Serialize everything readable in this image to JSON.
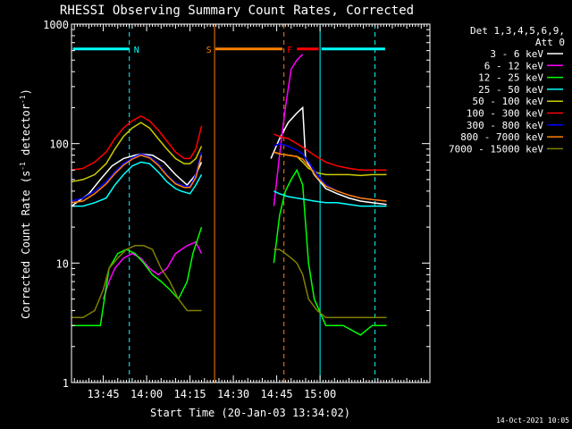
{
  "chart_data": {
    "type": "line",
    "title": "RHESSI Observing Summary Count Rates, Corrected",
    "xlabel": "Start Time (20-Jan-03 13:34:02)",
    "ylabel_main": "Corrected Count Rate (s",
    "ylabel_sup1": "-1",
    "ylabel_mid": " detector",
    "ylabel_sup2": "-1",
    "ylabel_end": ")",
    "yscale": "log",
    "ylim": [
      1,
      1000
    ],
    "xlim_min": [
      0,
      124
    ],
    "x_ticks": [
      {
        "v": 11,
        "label": "13:45"
      },
      {
        "v": 26,
        "label": "14:00"
      },
      {
        "v": 41,
        "label": "14:15"
      },
      {
        "v": 56,
        "label": "14:30"
      },
      {
        "v": 71,
        "label": "14:45"
      },
      {
        "v": 86,
        "label": "15:00"
      }
    ],
    "y_ticks": [
      {
        "v": 1,
        "label": "1"
      },
      {
        "v": 10,
        "label": "10"
      },
      {
        "v": 100,
        "label": "100"
      },
      {
        "v": 1000,
        "label": "1000"
      }
    ],
    "legend_header1": "Det 1,3,4,5,6,9,",
    "legend_header2": "Att 0",
    "legend_position": "top-right, outside plot",
    "timestamp": "14-Oct-2021 10:05",
    "series": [
      {
        "name": "3 - 6 keV",
        "color": "#ffffff",
        "points": [
          [
            0,
            30
          ],
          [
            6,
            38
          ],
          [
            10,
            50
          ],
          [
            14,
            65
          ],
          [
            18,
            75
          ],
          [
            22,
            80
          ],
          [
            24,
            82
          ],
          [
            28,
            80
          ],
          [
            32,
            70
          ],
          [
            36,
            55
          ],
          [
            40,
            45
          ],
          [
            43,
            55
          ],
          [
            45,
            70
          ],
          [
            69,
            75
          ],
          [
            72,
            110
          ],
          [
            75,
            150
          ],
          [
            78,
            180
          ],
          [
            80,
            200
          ],
          [
            81,
            75
          ],
          [
            84,
            55
          ],
          [
            88,
            42
          ],
          [
            92,
            38
          ],
          [
            96,
            35
          ],
          [
            100,
            33
          ],
          [
            104,
            32
          ],
          [
            109,
            31
          ]
        ]
      },
      {
        "name": "6 - 12 keV",
        "color": "#ff00ff",
        "points": [
          [
            11,
            5
          ],
          [
            13,
            7
          ],
          [
            15,
            9
          ],
          [
            18,
            11
          ],
          [
            21,
            12
          ],
          [
            24,
            11
          ],
          [
            27,
            9
          ],
          [
            30,
            8
          ],
          [
            33,
            9
          ],
          [
            36,
            12
          ],
          [
            40,
            14
          ],
          [
            43,
            15
          ],
          [
            45,
            12
          ],
          [
            70,
            30
          ],
          [
            72,
            80
          ],
          [
            74,
            200
          ],
          [
            76,
            420
          ],
          [
            78,
            500
          ],
          [
            80,
            560
          ]
        ]
      },
      {
        "name": "12 - 25 keV",
        "color": "#00ff00",
        "points": [
          [
            0,
            3
          ],
          [
            5,
            3
          ],
          [
            10,
            3
          ],
          [
            13,
            9
          ],
          [
            16,
            12
          ],
          [
            19,
            13
          ],
          [
            22,
            12
          ],
          [
            25,
            10
          ],
          [
            28,
            8
          ],
          [
            31,
            7
          ],
          [
            34,
            6
          ],
          [
            37,
            5
          ],
          [
            40,
            7
          ],
          [
            42,
            12
          ],
          [
            45,
            20
          ],
          [
            70,
            10
          ],
          [
            72,
            25
          ],
          [
            74,
            40
          ],
          [
            76,
            50
          ],
          [
            78,
            60
          ],
          [
            80,
            45
          ],
          [
            82,
            10
          ],
          [
            84,
            5
          ],
          [
            88,
            3
          ],
          [
            94,
            3
          ],
          [
            100,
            2.5
          ],
          [
            104,
            3
          ],
          [
            109,
            3
          ]
        ]
      },
      {
        "name": "25 - 50 keV",
        "color": "#00ffff",
        "points": [
          [
            0,
            30
          ],
          [
            4,
            30
          ],
          [
            8,
            32
          ],
          [
            12,
            35
          ],
          [
            15,
            45
          ],
          [
            18,
            55
          ],
          [
            21,
            65
          ],
          [
            24,
            70
          ],
          [
            27,
            68
          ],
          [
            30,
            58
          ],
          [
            33,
            48
          ],
          [
            36,
            42
          ],
          [
            38,
            40
          ],
          [
            41,
            38
          ],
          [
            43,
            45
          ],
          [
            45,
            55
          ],
          [
            70,
            40
          ],
          [
            72,
            38
          ],
          [
            75,
            36
          ],
          [
            78,
            35
          ],
          [
            81,
            34
          ],
          [
            84,
            33
          ],
          [
            88,
            32
          ],
          [
            92,
            32
          ],
          [
            96,
            31
          ],
          [
            100,
            30
          ],
          [
            104,
            30
          ],
          [
            109,
            30
          ]
        ]
      },
      {
        "name": "50 - 100 keV",
        "color": "#cccc00",
        "points": [
          [
            0,
            48
          ],
          [
            4,
            50
          ],
          [
            8,
            55
          ],
          [
            12,
            68
          ],
          [
            15,
            90
          ],
          [
            18,
            115
          ],
          [
            21,
            135
          ],
          [
            24,
            150
          ],
          [
            27,
            135
          ],
          [
            30,
            110
          ],
          [
            33,
            90
          ],
          [
            36,
            75
          ],
          [
            39,
            68
          ],
          [
            41,
            68
          ],
          [
            43,
            75
          ],
          [
            45,
            95
          ],
          [
            70,
            85
          ],
          [
            72,
            82
          ],
          [
            75,
            80
          ],
          [
            78,
            78
          ],
          [
            80,
            70
          ],
          [
            82,
            62
          ],
          [
            85,
            57
          ],
          [
            88,
            55
          ],
          [
            92,
            55
          ],
          [
            96,
            55
          ],
          [
            100,
            54
          ],
          [
            104,
            55
          ],
          [
            109,
            55
          ]
        ]
      },
      {
        "name": "100 - 300 keV",
        "color": "#ff0000",
        "points": [
          [
            0,
            60
          ],
          [
            4,
            62
          ],
          [
            8,
            70
          ],
          [
            12,
            85
          ],
          [
            15,
            110
          ],
          [
            18,
            135
          ],
          [
            21,
            155
          ],
          [
            24,
            170
          ],
          [
            27,
            155
          ],
          [
            30,
            130
          ],
          [
            33,
            105
          ],
          [
            36,
            85
          ],
          [
            39,
            75
          ],
          [
            41,
            75
          ],
          [
            43,
            90
          ],
          [
            45,
            140
          ],
          [
            70,
            120
          ],
          [
            72,
            115
          ],
          [
            75,
            110
          ],
          [
            78,
            100
          ],
          [
            81,
            90
          ],
          [
            84,
            80
          ],
          [
            88,
            70
          ],
          [
            92,
            65
          ],
          [
            96,
            62
          ],
          [
            100,
            60
          ],
          [
            104,
            60
          ],
          [
            109,
            60
          ]
        ]
      },
      {
        "name": "300 - 800 keV",
        "color": "#0000ff",
        "points": [
          [
            0,
            33
          ],
          [
            4,
            35
          ],
          [
            8,
            40
          ],
          [
            12,
            48
          ],
          [
            15,
            58
          ],
          [
            18,
            68
          ],
          [
            21,
            76
          ],
          [
            24,
            82
          ],
          [
            27,
            78
          ],
          [
            30,
            68
          ],
          [
            33,
            55
          ],
          [
            36,
            47
          ],
          [
            39,
            44
          ],
          [
            41,
            44
          ],
          [
            43,
            55
          ],
          [
            45,
            85
          ],
          [
            70,
            95
          ],
          [
            72,
            100
          ],
          [
            75,
            95
          ],
          [
            78,
            88
          ],
          [
            80,
            82
          ],
          [
            82,
            70
          ],
          [
            85,
            55
          ],
          [
            88,
            45
          ],
          [
            92,
            40
          ],
          [
            96,
            37
          ],
          [
            100,
            35
          ],
          [
            104,
            34
          ],
          [
            109,
            33
          ]
        ]
      },
      {
        "name": "800 - 7000 keV",
        "color": "#ff8000",
        "points": [
          [
            0,
            32
          ],
          [
            4,
            33
          ],
          [
            8,
            38
          ],
          [
            12,
            46
          ],
          [
            15,
            56
          ],
          [
            18,
            66
          ],
          [
            21,
            74
          ],
          [
            24,
            80
          ],
          [
            27,
            76
          ],
          [
            30,
            66
          ],
          [
            33,
            54
          ],
          [
            36,
            46
          ],
          [
            39,
            43
          ],
          [
            41,
            43
          ],
          [
            43,
            52
          ],
          [
            45,
            80
          ],
          [
            70,
            85
          ],
          [
            72,
            82
          ],
          [
            75,
            80
          ],
          [
            78,
            78
          ],
          [
            80,
            74
          ],
          [
            82,
            65
          ],
          [
            85,
            52
          ],
          [
            88,
            44
          ],
          [
            92,
            40
          ],
          [
            96,
            37
          ],
          [
            100,
            35
          ],
          [
            104,
            34
          ],
          [
            109,
            33
          ]
        ]
      },
      {
        "name": "7000 - 15000 keV",
        "color": "#808000",
        "points": [
          [
            0,
            3.5
          ],
          [
            4,
            3.5
          ],
          [
            8,
            4
          ],
          [
            11,
            6
          ],
          [
            13,
            9
          ],
          [
            16,
            11
          ],
          [
            19,
            13
          ],
          [
            22,
            14
          ],
          [
            25,
            14
          ],
          [
            28,
            13
          ],
          [
            31,
            9
          ],
          [
            34,
            7
          ],
          [
            37,
            5
          ],
          [
            40,
            4
          ],
          [
            43,
            4
          ],
          [
            45,
            4
          ],
          [
            70,
            13
          ],
          [
            72,
            13
          ],
          [
            74,
            12
          ],
          [
            76,
            11
          ],
          [
            78,
            10
          ],
          [
            80,
            8
          ],
          [
            82,
            5
          ],
          [
            85,
            4
          ],
          [
            88,
            3.5
          ],
          [
            92,
            3.5
          ],
          [
            96,
            3.5
          ],
          [
            100,
            3.5
          ],
          [
            104,
            3.5
          ],
          [
            109,
            3.5
          ]
        ]
      }
    ],
    "vertical_lines": [
      {
        "v": 20.0,
        "color": "#00ffff",
        "dashed": true
      },
      {
        "v": 49.5,
        "color": "#ff8000",
        "dashed": false
      },
      {
        "v": 73.5,
        "color": "#ff8000",
        "dashed": true
      },
      {
        "v": 86.0,
        "color": "#00ffff",
        "dashed": false
      },
      {
        "v": 105.0,
        "color": "#00ffff",
        "dashed": true
      }
    ],
    "state_bars": [
      {
        "label": "N",
        "color": "#00ffff",
        "from": 0.5,
        "to": 20.0,
        "label_at": 22.5
      },
      {
        "label": "S",
        "color": "#ff8000",
        "from": 49.8,
        "to": 73.0,
        "label_at": 47.5
      },
      {
        "label": "F",
        "color": "#ff0000",
        "from": 78.0,
        "to": 85.5,
        "label_at": 75.5
      },
      {
        "label": "",
        "color": "#00ffff",
        "from": 86.5,
        "to": 108.5,
        "label_at": 0
      }
    ],
    "state_bar_level": 620
  }
}
